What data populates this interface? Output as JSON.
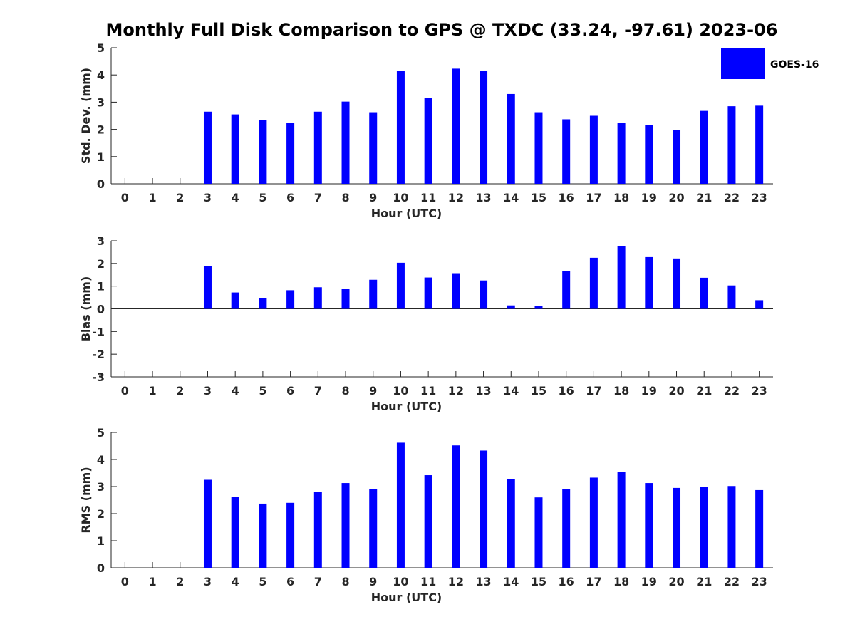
{
  "title": "Monthly Full Disk Comparison to GPS @ TXDC (33.24, -97.61) 2023-06",
  "legend": {
    "label": "GOES-16",
    "color": "#0000ff",
    "placement": "top-right"
  },
  "chart_data": [
    {
      "type": "bar",
      "ylabel": "Std. Dev. (mm)",
      "xlabel": "Hour (UTC)",
      "ylim": [
        0,
        5
      ],
      "yticks": [
        0,
        1,
        2,
        3,
        4,
        5
      ],
      "xticks": [
        0,
        1,
        2,
        3,
        4,
        5,
        6,
        7,
        8,
        9,
        10,
        11,
        12,
        13,
        14,
        15,
        16,
        17,
        18,
        19,
        20,
        21,
        22,
        23
      ],
      "x": [
        3,
        4,
        5,
        6,
        7,
        8,
        9,
        10,
        11,
        12,
        13,
        14,
        15,
        16,
        17,
        18,
        19,
        20,
        21,
        22,
        23
      ],
      "values": [
        2.65,
        2.55,
        2.35,
        2.25,
        2.65,
        3.02,
        2.63,
        4.15,
        3.15,
        4.23,
        4.15,
        3.3,
        2.63,
        2.37,
        2.5,
        2.25,
        2.15,
        1.97,
        2.68,
        2.85,
        2.87
      ],
      "color": "#0000ff",
      "grid": false
    },
    {
      "type": "bar",
      "ylabel": "Bias (mm)",
      "xlabel": "Hour (UTC)",
      "ylim": [
        -3,
        3
      ],
      "yticks": [
        -3,
        -2,
        -1,
        0,
        1,
        2,
        3
      ],
      "xticks": [
        0,
        1,
        2,
        3,
        4,
        5,
        6,
        7,
        8,
        9,
        10,
        11,
        12,
        13,
        14,
        15,
        16,
        17,
        18,
        19,
        20,
        21,
        22,
        23
      ],
      "x": [
        3,
        4,
        5,
        6,
        7,
        8,
        9,
        10,
        11,
        12,
        13,
        14,
        15,
        16,
        17,
        18,
        19,
        20,
        21,
        22,
        23
      ],
      "values": [
        1.9,
        0.72,
        0.47,
        0.82,
        0.95,
        0.88,
        1.28,
        2.03,
        1.38,
        1.57,
        1.25,
        0.15,
        0.13,
        1.68,
        2.25,
        2.75,
        2.28,
        2.22,
        1.37,
        1.03,
        0.38
      ],
      "color": "#0000ff",
      "grid": false
    },
    {
      "type": "bar",
      "ylabel": "RMS (mm)",
      "xlabel": "Hour (UTC)",
      "ylim": [
        0,
        5
      ],
      "yticks": [
        0,
        1,
        2,
        3,
        4,
        5
      ],
      "xticks": [
        0,
        1,
        2,
        3,
        4,
        5,
        6,
        7,
        8,
        9,
        10,
        11,
        12,
        13,
        14,
        15,
        16,
        17,
        18,
        19,
        20,
        21,
        22,
        23
      ],
      "x": [
        3,
        4,
        5,
        6,
        7,
        8,
        9,
        10,
        11,
        12,
        13,
        14,
        15,
        16,
        17,
        18,
        19,
        20,
        21,
        22,
        23
      ],
      "values": [
        3.25,
        2.63,
        2.37,
        2.4,
        2.8,
        3.13,
        2.92,
        4.62,
        3.42,
        4.52,
        4.33,
        3.28,
        2.6,
        2.9,
        3.33,
        3.55,
        3.13,
        2.95,
        3.0,
        3.02,
        2.87
      ],
      "color": "#0000ff",
      "grid": false
    }
  ]
}
